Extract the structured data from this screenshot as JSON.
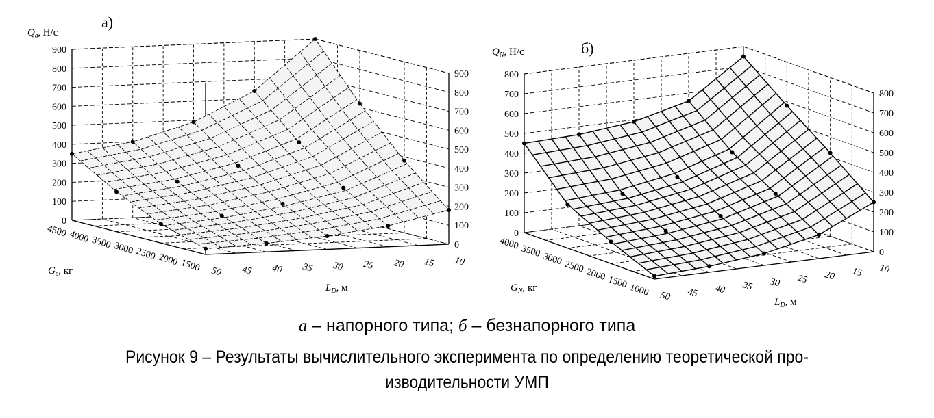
{
  "chart_data": [
    {
      "type": "surface3d",
      "panel_label": "а)",
      "zlabel": {
        "symbol": "Q",
        "subscript": "в",
        "unit": ", Н/с"
      },
      "xlabel": {
        "symbol": "G",
        "subscript": "в",
        "unit": ", кг"
      },
      "ylabel": {
        "symbol": "L",
        "subscript": "D",
        "unit": ", м"
      },
      "z_ticks": [
        "0",
        "100",
        "200",
        "300",
        "400",
        "500",
        "600",
        "700",
        "800",
        "900"
      ],
      "x_ticks": [
        "1500",
        "2000",
        "2500",
        "3000",
        "3500",
        "4000",
        "4500"
      ],
      "y_ticks": [
        "50",
        "45",
        "40",
        "35",
        "30",
        "25",
        "20",
        "15",
        "10"
      ],
      "zlim": [
        0,
        900
      ],
      "xlim": [
        1500,
        4500
      ],
      "ylim": [
        10,
        50
      ],
      "grid": true,
      "surface": {
        "G": [
          1500,
          2500,
          3500,
          4500
        ],
        "L": [
          10,
          20,
          30,
          40,
          50
        ],
        "Q": [
          [
            180,
            110,
            70,
            45,
            30
          ],
          [
            380,
            250,
            180,
            130,
            100
          ],
          [
            620,
            430,
            320,
            250,
            210
          ],
          [
            900,
            640,
            490,
            400,
            350
          ]
        ]
      }
    },
    {
      "type": "surface3d",
      "panel_label": "б)",
      "zlabel": {
        "symbol": "Q",
        "subscript": "N",
        "unit": ", Н/с"
      },
      "xlabel": {
        "symbol": "G",
        "subscript": "N",
        "unit": ", кг"
      },
      "ylabel": {
        "symbol": "L",
        "subscript": "D",
        "unit": ", м"
      },
      "z_ticks": [
        "0",
        "100",
        "200",
        "300",
        "400",
        "500",
        "600",
        "700",
        "800"
      ],
      "x_ticks": [
        "1000",
        "1500",
        "2000",
        "2500",
        "3000",
        "3500",
        "4000"
      ],
      "y_ticks": [
        "50",
        "45",
        "40",
        "35",
        "30",
        "25",
        "20",
        "15",
        "10"
      ],
      "zlim": [
        0,
        800
      ],
      "xlim": [
        1000,
        4000
      ],
      "ylim": [
        10,
        50
      ],
      "grid": true,
      "surface": {
        "G": [
          1000,
          2000,
          3000,
          4000
        ],
        "L": [
          10,
          20,
          30,
          40,
          50
        ],
        "Q": [
          [
            250,
            120,
            60,
            30,
            15
          ],
          [
            420,
            250,
            170,
            130,
            110
          ],
          [
            580,
            380,
            290,
            240,
            220
          ],
          [
            750,
            560,
            490,
            460,
            450
          ]
        ]
      }
    }
  ],
  "caption": {
    "sublabel_a": "а",
    "sublabel_a_text": " – напорного типа; ",
    "sublabel_b": "б",
    "sublabel_b_text": " – безнапорного типа",
    "line1": "Рисунок 9 – Результаты вычислительного эксперимента по определению теоретической про-",
    "line2": "изводительности УМП"
  }
}
